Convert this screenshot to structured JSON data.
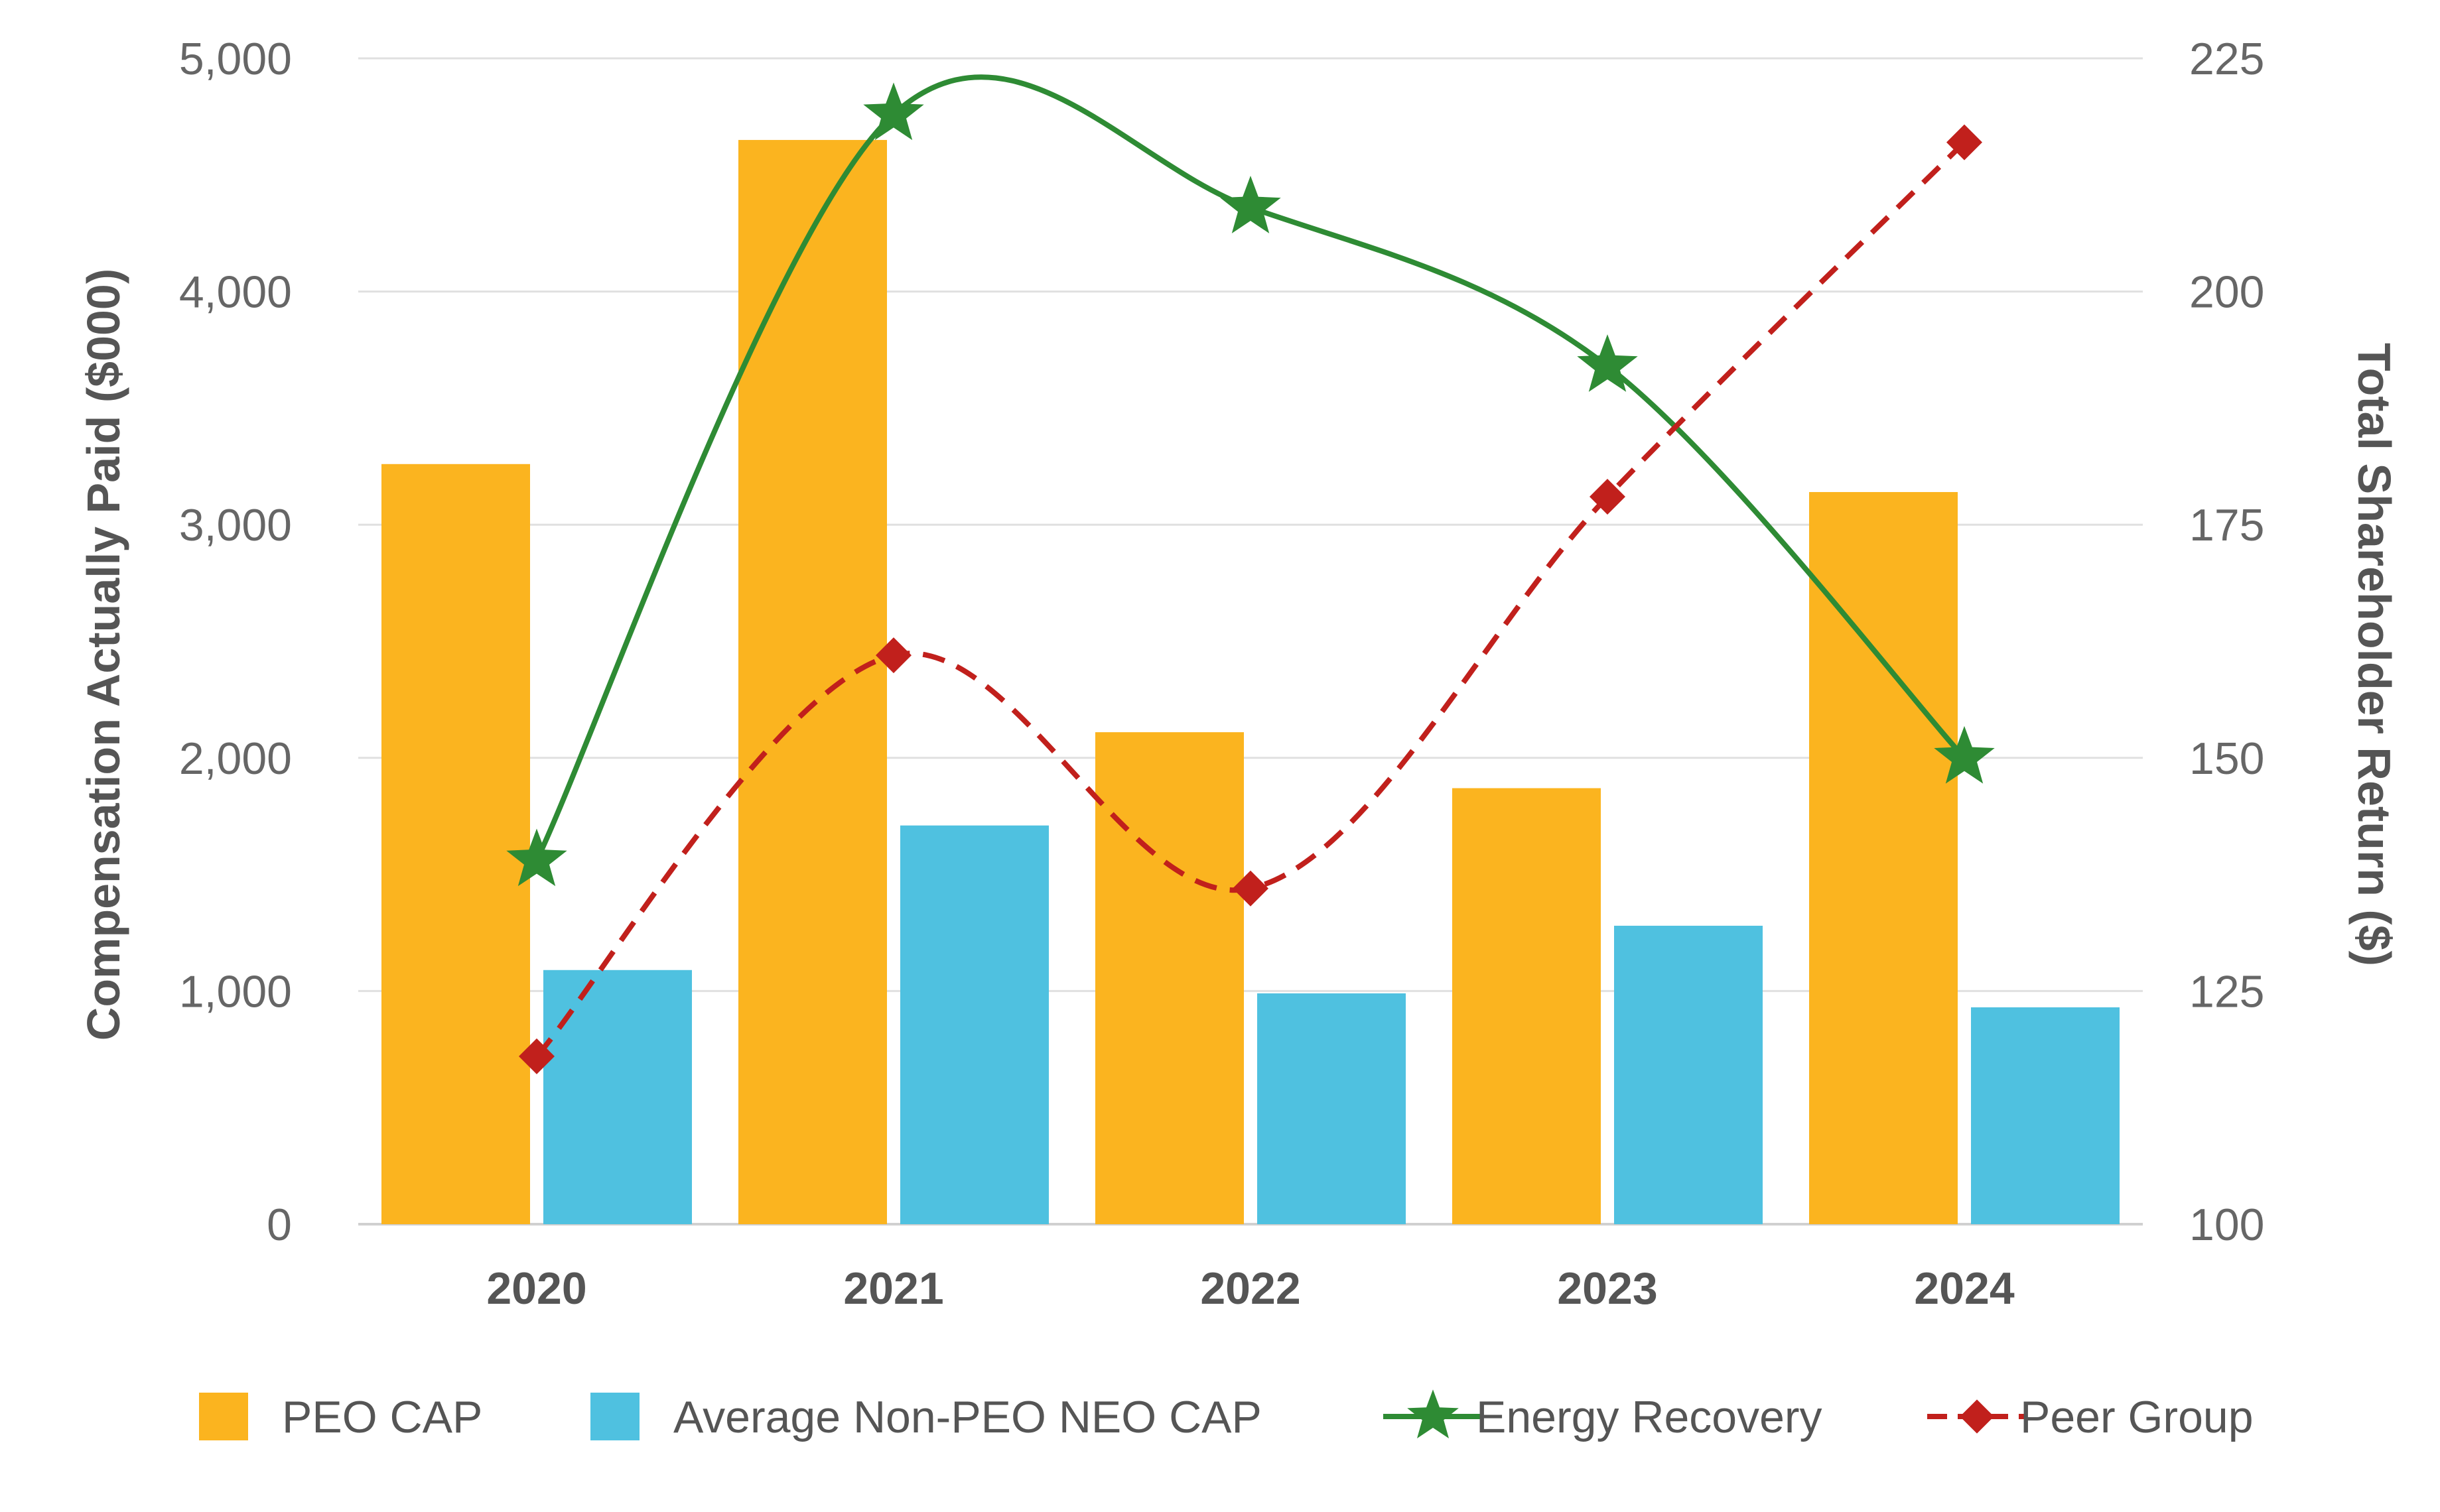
{
  "chart_data": {
    "type": "bar",
    "categories": [
      "2020",
      "2021",
      "2022",
      "2023",
      "2024"
    ],
    "y_left": {
      "label": "Compensation Actually Paid ($000)",
      "range": [
        0,
        5000
      ],
      "ticks": [
        0,
        1000,
        2000,
        3000,
        4000,
        5000
      ],
      "tick_labels": [
        "0",
        "1,000",
        "2,000",
        "3,000",
        "4,000",
        "5,000"
      ]
    },
    "y_right": {
      "label": "Total Shareholder Return ($)",
      "range": [
        100,
        225
      ],
      "ticks": [
        100,
        125,
        150,
        175,
        200,
        225
      ],
      "tick_labels": [
        "100",
        "125",
        "150",
        "175",
        "200",
        "225"
      ]
    },
    "grid": true,
    "legend_position": "bottom",
    "series": [
      {
        "name": "PEO CAP",
        "type": "bar",
        "axis": "left",
        "color": "#FBB41F",
        "values": [
          3260,
          4650,
          2110,
          1870,
          3140
        ]
      },
      {
        "name": "Average Non-PEO NEO CAP",
        "type": "bar",
        "axis": "left",
        "color": "#4FC1E0",
        "values": [
          1090,
          1710,
          990,
          1280,
          930
        ]
      },
      {
        "name": "Energy Recovery",
        "type": "line",
        "axis": "right",
        "color": "#2E8B34",
        "marker": "star",
        "dashed": false,
        "values": [
          139,
          219,
          209,
          192,
          150
        ]
      },
      {
        "name": "Peer Group",
        "type": "line",
        "axis": "right",
        "color": "#C1201C",
        "marker": "diamond",
        "dashed": true,
        "values": [
          118,
          161,
          136,
          178,
          216
        ]
      }
    ]
  }
}
